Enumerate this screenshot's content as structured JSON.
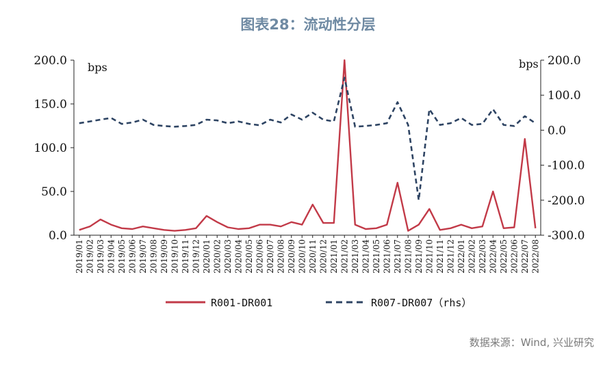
{
  "title": "图表28：流动性分层",
  "source": "数据来源：Wind, 兴业研究",
  "chart_data": {
    "type": "line",
    "left_unit": "bps",
    "right_unit": "bps",
    "left_ylim": [
      0,
      200
    ],
    "right_ylim": [
      -300,
      200
    ],
    "left_ticks": [
      "0.0",
      "50.0",
      "100.0",
      "150.0",
      "200.0"
    ],
    "right_ticks": [
      "-300.0",
      "-200.0",
      "-100.0",
      "0.0",
      "100.0",
      "200.0"
    ],
    "categories": [
      "2019/01",
      "2019/02",
      "2019/03",
      "2019/04",
      "2019/05",
      "2019/06",
      "2019/07",
      "2019/08",
      "2019/09",
      "2019/10",
      "2019/11",
      "2019/12",
      "2020/01",
      "2020/02",
      "2020/03",
      "2020/04",
      "2020/05",
      "2020/06",
      "2020/07",
      "2020/08",
      "2020/09",
      "2020/10",
      "2020/11",
      "2020/12",
      "2021/01",
      "2021/02",
      "2021/03",
      "2021/04",
      "2021/05",
      "2021/06",
      "2021/07",
      "2021/08",
      "2021/09",
      "2021/10",
      "2021/11",
      "2021/12",
      "2022/01",
      "2022/02",
      "2022/03",
      "2022/04",
      "2022/05",
      "2022/06",
      "2022/07",
      "2022/08"
    ],
    "series": [
      {
        "name": "R001-DR001",
        "axis": "left",
        "color": "#c23a48",
        "style": "solid",
        "values": [
          6,
          10,
          18,
          12,
          8,
          7,
          10,
          8,
          6,
          5,
          6,
          8,
          22,
          15,
          9,
          7,
          8,
          12,
          12,
          10,
          15,
          12,
          35,
          14,
          14,
          200,
          12,
          7,
          8,
          12,
          60,
          5,
          12,
          30,
          6,
          8,
          12,
          8,
          10,
          50,
          8,
          9,
          110,
          8
        ]
      },
      {
        "name": "R007-DR007（rhs）",
        "axis": "right",
        "color": "#2e4463",
        "style": "dashed",
        "values": [
          20,
          25,
          30,
          35,
          18,
          22,
          30,
          15,
          12,
          10,
          12,
          15,
          30,
          28,
          20,
          25,
          18,
          14,
          30,
          22,
          45,
          30,
          50,
          30,
          25,
          150,
          10,
          12,
          15,
          20,
          80,
          15,
          -200,
          60,
          15,
          20,
          35,
          15,
          18,
          60,
          15,
          12,
          40,
          20
        ]
      }
    ]
  }
}
